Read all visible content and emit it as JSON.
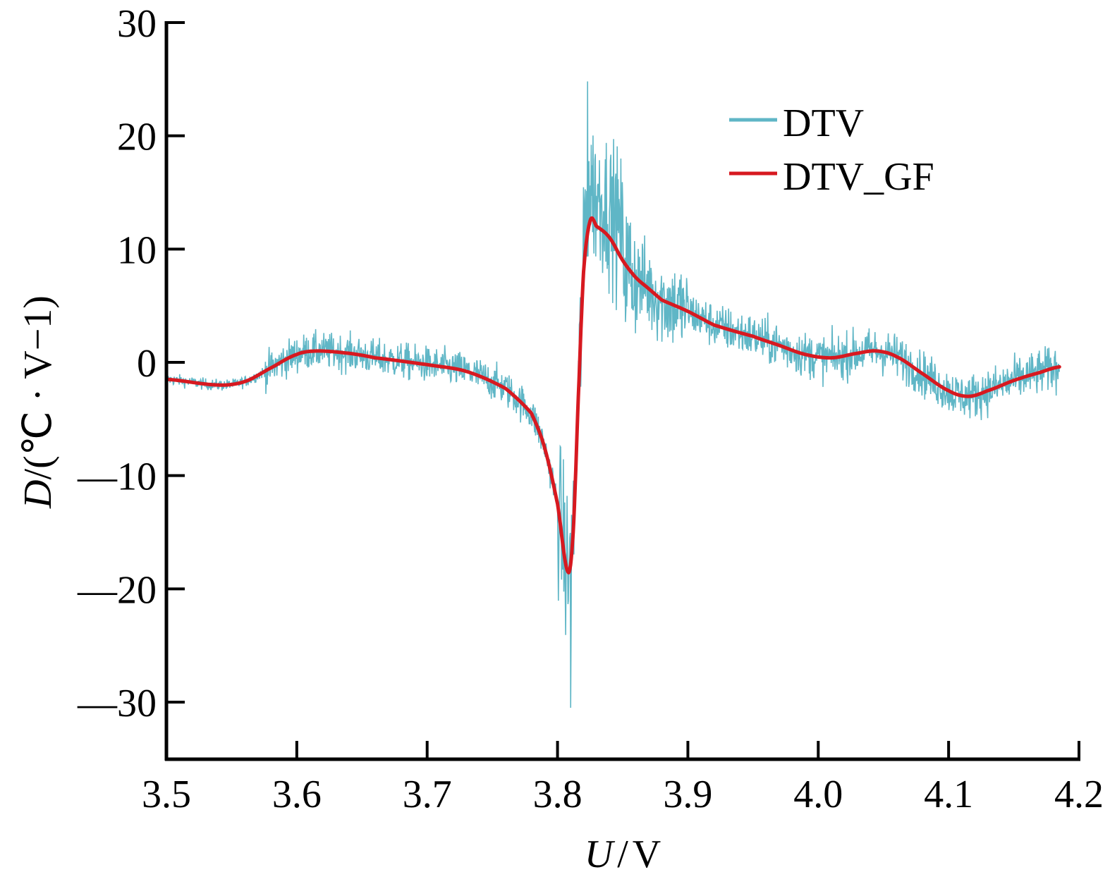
{
  "chart_data": {
    "type": "line",
    "title": "",
    "xlabel": {
      "var": "U",
      "sep": "/",
      "unit": "V"
    },
    "ylabel": {
      "var": "D",
      "sep": "/",
      "unit": "(℃ · V−1)"
    },
    "xlim": [
      3.5,
      4.2
    ],
    "ylim": [
      -35,
      30
    ],
    "x_ticks": [
      3.5,
      3.6,
      3.7,
      3.8,
      3.9,
      4.0,
      4.1,
      4.2
    ],
    "x_tick_labels": [
      "3.5",
      "3.6",
      "3.7",
      "3.8",
      "3.9",
      "4.0",
      "4.1",
      "4.2"
    ],
    "y_ticks": [
      30,
      20,
      10,
      0,
      -10,
      -20,
      -30
    ],
    "y_tick_labels": [
      "30",
      "20",
      "10",
      "0",
      "—10",
      "—20",
      "—30"
    ],
    "grid": false,
    "legend_position": "top-right",
    "series": [
      {
        "name": "DTV",
        "color": "#5fb6c6",
        "style": "noisy",
        "note_values": "raw signal: smooth trend plus noise; noise amplitude grows near the peaks",
        "x": [
          3.5,
          3.54,
          3.56,
          3.58,
          3.6,
          3.615,
          3.64,
          3.66,
          3.7,
          3.73,
          3.76,
          3.78,
          3.79,
          3.8,
          3.808,
          3.812,
          3.816,
          3.82,
          3.825,
          3.83,
          3.84,
          3.85,
          3.86,
          3.87,
          3.88,
          3.9,
          3.92,
          3.95,
          3.97,
          3.99,
          4.01,
          4.03,
          4.045,
          4.06,
          4.08,
          4.1,
          4.115,
          4.13,
          4.15,
          4.17,
          4.185
        ],
        "y": [
          -1.5,
          -2.0,
          -1.7,
          -0.5,
          0.7,
          1.0,
          0.8,
          0.4,
          -0.2,
          -0.8,
          -2.3,
          -4.5,
          -7.5,
          -12.5,
          -23.0,
          -18.0,
          -3.0,
          10.0,
          18.0,
          14.0,
          12.0,
          10.0,
          8.5,
          7.0,
          6.0,
          4.8,
          3.5,
          2.4,
          1.5,
          0.7,
          0.4,
          0.8,
          1.0,
          0.5,
          -1.0,
          -2.5,
          -3.0,
          -2.5,
          -1.6,
          -0.9,
          -0.4
        ],
        "extremes": {
          "max": 24.8,
          "max_x": 3.823,
          "min": -30.5,
          "min_x": 3.81
        }
      },
      {
        "name": "DTV_GF",
        "color": "#d71920",
        "style": "smooth",
        "x": [
          3.5,
          3.54,
          3.56,
          3.58,
          3.6,
          3.615,
          3.64,
          3.66,
          3.7,
          3.73,
          3.76,
          3.78,
          3.79,
          3.8,
          3.808,
          3.812,
          3.816,
          3.82,
          3.825,
          3.83,
          3.84,
          3.85,
          3.86,
          3.87,
          3.88,
          3.9,
          3.92,
          3.95,
          3.97,
          3.99,
          4.01,
          4.03,
          4.045,
          4.06,
          4.08,
          4.1,
          4.115,
          4.13,
          4.15,
          4.17,
          4.185
        ],
        "y": [
          -1.5,
          -2.0,
          -1.7,
          -0.5,
          0.7,
          1.0,
          0.8,
          0.4,
          -0.2,
          -0.8,
          -2.3,
          -4.5,
          -7.5,
          -12.5,
          -18.5,
          -15.0,
          -3.0,
          8.0,
          12.5,
          12.0,
          11.0,
          9.0,
          7.5,
          6.5,
          5.5,
          4.5,
          3.3,
          2.3,
          1.5,
          0.7,
          0.4,
          0.8,
          1.0,
          0.5,
          -1.0,
          -2.5,
          -3.0,
          -2.5,
          -1.6,
          -0.9,
          -0.4
        ]
      }
    ]
  }
}
